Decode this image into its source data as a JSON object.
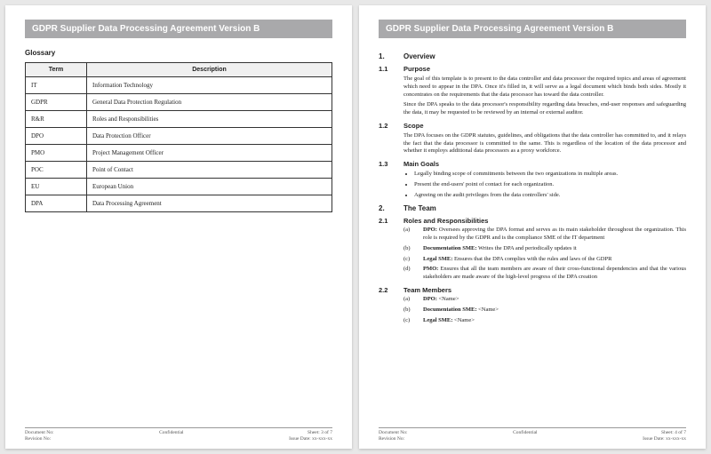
{
  "title": "GDPR Supplier Data Processing Agreement Version B",
  "glossary": {
    "heading": "Glossary",
    "col_term": "Term",
    "col_desc": "Description",
    "rows": [
      {
        "term": "IT",
        "desc": "Information Technology"
      },
      {
        "term": "GDPR",
        "desc": "General Data Protection Regulation"
      },
      {
        "term": "R&R",
        "desc": "Roles and Responsibilities"
      },
      {
        "term": "DPO",
        "desc": "Data Protection Officer"
      },
      {
        "term": "PMO",
        "desc": "Project Management Officer"
      },
      {
        "term": "POC",
        "desc": "Point of Contact"
      },
      {
        "term": "EU",
        "desc": "European Union"
      },
      {
        "term": "DPA",
        "desc": "Data Processing Agreement"
      }
    ]
  },
  "footer": {
    "doc_no": "Document No:",
    "rev_no": "Revision No:",
    "confidential": "Confidential",
    "sheet3": "Sheet: 3 of 7",
    "sheet4": "Sheet: 4 of 7",
    "issue": "Issue Date: xx-xxx-xx"
  },
  "s1": {
    "num": "1.",
    "title": "Overview"
  },
  "s11": {
    "num": "1.1",
    "title": "Purpose",
    "p1": "The goal of this template is to present to the data controller and data processor the required topics and areas of agreement which need to appear in the DPA. Once it's filled in, it will serve as a legal document which binds both sides. Mostly it concentrates on the requirements that the data processor has toward the data controller.",
    "p2": "Since the DPA speaks to the data processor's responsibility regarding data breaches, end-user responses and safeguarding the data, it may be requested to be reviewed by an internal or external auditor."
  },
  "s12": {
    "num": "1.2",
    "title": "Scope",
    "p1": "The DPA focuses on the GDPR statutes, guidelines, and obligations that the data controller has committed to, and it relays the fact that the data processor is committed to the same. This is regardless of the location of the data processor and whether it employs additional data processors as a proxy workforce."
  },
  "s13": {
    "num": "1.3",
    "title": "Main Goals",
    "g1": "Legally binding scope of commitments between the two organizations in multiple areas.",
    "g2": "Present the end-users' point of contact for each organization.",
    "g3": "Agreeing on the audit privileges from the data controllers' side."
  },
  "s2": {
    "num": "2.",
    "title": "The Team"
  },
  "s21": {
    "num": "2.1",
    "title": "Roles and Responsibilities",
    "a_label": "(a)",
    "a_bold": "DPO:",
    "a_txt": " Oversees approving the DPA format and serves as its main stakeholder throughout the organization. This role is required by the GDPR and is the compliance SME of the IT department",
    "b_label": "(b)",
    "b_bold": "Documentation SME:",
    "b_txt": " Writes the DPA and periodically updates it",
    "c_label": "(c)",
    "c_bold": "Legal SME:",
    "c_txt": " Ensures that the DPA complies with the rules and laws of the GDPR",
    "d_label": "(d)",
    "d_bold": "PMO:",
    "d_txt": " Ensures that all the team members are aware of their cross-functional dependencies and that the various stakeholders are made aware of the high-level progress of the DPA creation"
  },
  "s22": {
    "num": "2.2",
    "title": "Team Members",
    "a_label": "(a)",
    "a_bold": "DPO:",
    "a_txt": " <Name>",
    "b_label": "(b)",
    "b_bold": "Documentation SME:",
    "b_txt": " <Name>",
    "c_label": "(c)",
    "c_bold": "Legal SME:",
    "c_txt": " <Name>"
  }
}
